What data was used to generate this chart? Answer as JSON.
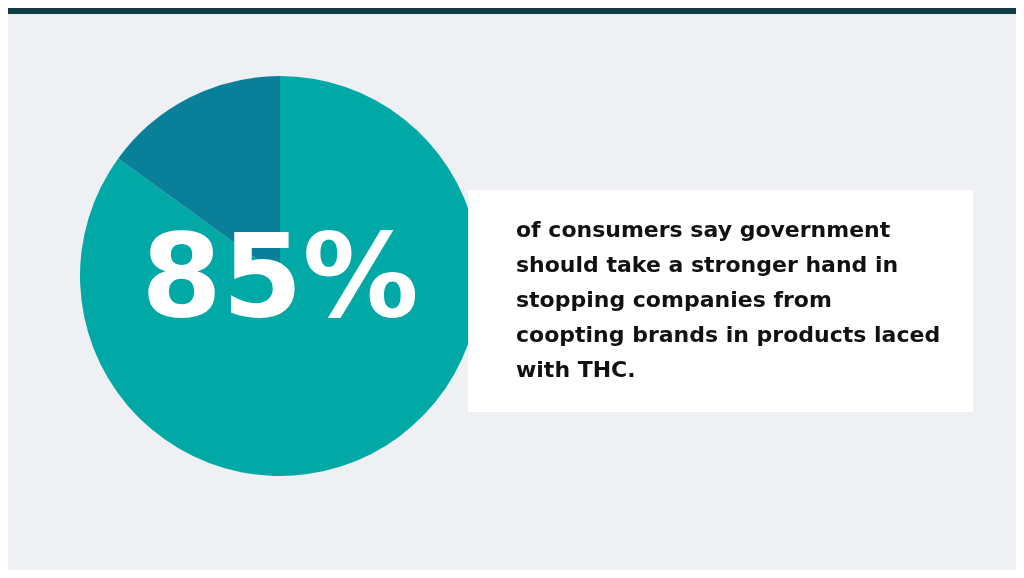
{
  "chart_data": {
    "type": "pie",
    "categories": [
      null,
      null
    ],
    "values": [
      85,
      15
    ],
    "colors": [
      "#00a9a5",
      "#0a7f9a"
    ],
    "value_labels": [
      "85%",
      null
    ],
    "legend": false,
    "annotations": [
      "of consumers say government should take a stronger hand in stopping companies from coopting brands in products laced with THC."
    ]
  }
}
